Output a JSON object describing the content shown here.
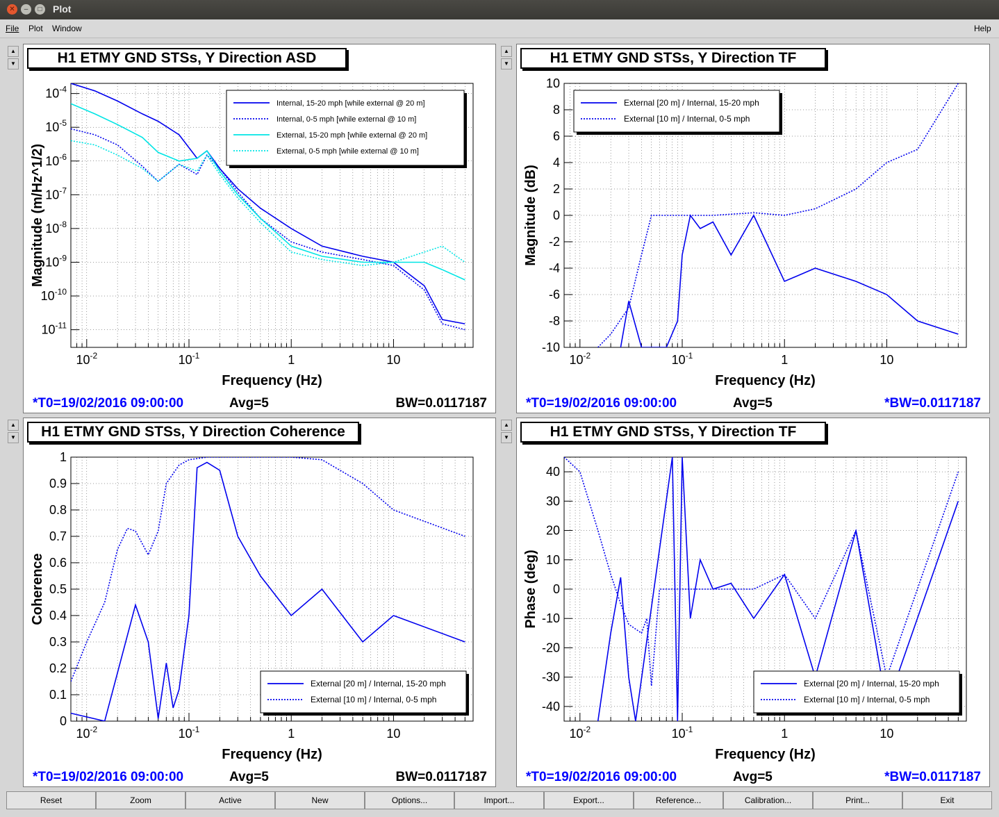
{
  "window": {
    "title": "Plot",
    "close_icon": "close-icon",
    "minimize_icon": "minimize-icon",
    "maximize_icon": "maximize-icon"
  },
  "menu": {
    "file": "File",
    "plot": "Plot",
    "window": "Window",
    "help": "Help"
  },
  "colors": {
    "blue": "#0000ee",
    "cyan": "#00e5e5",
    "stat_blue": "#0000ff"
  },
  "panels": [
    {
      "title": "H1 ETMY GND STSs, Y Direction ASD",
      "t0": "*T0=19/02/2016 09:00:00",
      "avg": "Avg=5",
      "bw": "BW=0.0117187",
      "ylabel": "Magnitude (m/Hz^1/2)",
      "xlabel": "Frequency (Hz)",
      "xticks": [
        "10^-2",
        "10^-1",
        "1",
        "10"
      ],
      "yticks": [
        "10^-4",
        "10^-5",
        "10^-6",
        "10^-7",
        "10^-8",
        "10^-9",
        "10^-10",
        "10^-11"
      ],
      "legend": [
        "Internal, 15-20 mph [while external @ 20 m]",
        "Internal, 0-5 mph [while external @ 10 m]",
        "External, 15-20 mph [while external @ 20 m]",
        "External, 0-5 mph [while external @ 10 m]"
      ]
    },
    {
      "title": "H1 ETMY GND STSs, Y Direction TF",
      "t0": "*T0=19/02/2016 09:00:00",
      "avg": "Avg=5",
      "bw": "*BW=0.0117187",
      "ylabel": "Magnitude (dB)",
      "xlabel": "Frequency (Hz)",
      "xticks": [
        "10^-2",
        "10^-1",
        "1",
        "10"
      ],
      "yticks": [
        "10",
        "8",
        "6",
        "4",
        "2",
        "0",
        "-2",
        "-4",
        "-6",
        "-8",
        "-10"
      ],
      "legend": [
        "External [20 m] / Internal, 15-20 mph",
        "External [10 m] / Internal, 0-5 mph"
      ]
    },
    {
      "title": "H1 ETMY GND STSs, Y Direction Coherence",
      "t0": "*T0=19/02/2016 09:00:00",
      "avg": "Avg=5",
      "bw": "BW=0.0117187",
      "ylabel": "Coherence",
      "xlabel": "Frequency (Hz)",
      "xticks": [
        "10^-2",
        "10^-1",
        "1",
        "10"
      ],
      "yticks": [
        "1",
        "0.9",
        "0.8",
        "0.7",
        "0.6",
        "0.5",
        "0.4",
        "0.3",
        "0.2",
        "0.1",
        "0"
      ],
      "legend": [
        "External [20 m] / Internal, 15-20 mph",
        "External [10 m] / Internal, 0-5 mph"
      ]
    },
    {
      "title": "H1 ETMY GND STSs, Y Direction TF",
      "t0": "*T0=19/02/2016 09:00:00",
      "avg": "Avg=5",
      "bw": "*BW=0.0117187",
      "ylabel": "Phase (deg)",
      "xlabel": "Frequency (Hz)",
      "xticks": [
        "10^-2",
        "10^-1",
        "1",
        "10"
      ],
      "yticks": [
        "40",
        "30",
        "20",
        "10",
        "0",
        "-10",
        "-20",
        "-30",
        "-40"
      ],
      "legend": [
        "External [20 m] / Internal, 15-20 mph",
        "External [10 m] / Internal, 0-5 mph"
      ]
    }
  ],
  "chart_data": [
    {
      "type": "line",
      "title": "H1 ETMY GND STSs, Y Direction ASD",
      "xlabel": "Frequency (Hz)",
      "ylabel": "Magnitude (m/Hz^1/2)",
      "xscale": "log",
      "yscale": "log",
      "xlim": [
        0.007,
        60
      ],
      "ylim": [
        3e-12,
        0.0002
      ],
      "grid": true,
      "legend_position": "top-right",
      "series": [
        {
          "name": "Internal, 15-20 mph [while external @ 20 m]",
          "style": "solid",
          "color": "#0000ee",
          "x": [
            0.007,
            0.012,
            0.02,
            0.035,
            0.05,
            0.08,
            0.12,
            0.15,
            0.2,
            0.3,
            0.5,
            1,
            2,
            5,
            10,
            20,
            30,
            50
          ],
          "y": [
            0.0002,
            0.00012,
            6e-05,
            2.5e-05,
            1.5e-05,
            6e-06,
            1.2e-06,
            2e-06,
            6e-07,
            1.5e-07,
            4e-08,
            1e-08,
            3e-09,
            1.5e-09,
            1e-09,
            2e-10,
            2e-11,
            1.5e-11
          ]
        },
        {
          "name": "Internal, 0-5 mph [while external @ 10 m]",
          "style": "dotted",
          "color": "#0000ee",
          "x": [
            0.007,
            0.012,
            0.02,
            0.035,
            0.05,
            0.08,
            0.12,
            0.15,
            0.2,
            0.3,
            0.5,
            1,
            2,
            5,
            10,
            20,
            30,
            50
          ],
          "y": [
            9e-06,
            6e-06,
            3e-06,
            7e-07,
            2.5e-07,
            8e-07,
            4e-07,
            1.5e-06,
            6e-07,
            1.2e-07,
            2e-08,
            4e-09,
            2e-09,
            1.2e-09,
            8e-10,
            1.5e-10,
            1.5e-11,
            1e-11
          ]
        },
        {
          "name": "External, 15-20 mph [while external @ 20 m]",
          "style": "solid",
          "color": "#00e5e5",
          "x": [
            0.007,
            0.012,
            0.02,
            0.035,
            0.05,
            0.08,
            0.12,
            0.15,
            0.2,
            0.3,
            0.5,
            1,
            2,
            5,
            10,
            20,
            30,
            50
          ],
          "y": [
            5e-05,
            2.5e-05,
            1.2e-05,
            5e-06,
            1.8e-06,
            1e-06,
            1.2e-06,
            2e-06,
            5e-07,
            1e-07,
            2e-08,
            3e-09,
            1.5e-09,
            1e-09,
            1e-09,
            1e-09,
            6e-10,
            3e-10
          ]
        },
        {
          "name": "External, 0-5 mph [while external @ 10 m]",
          "style": "dotted",
          "color": "#00e5e5",
          "x": [
            0.007,
            0.012,
            0.02,
            0.035,
            0.05,
            0.08,
            0.12,
            0.15,
            0.2,
            0.3,
            0.5,
            1,
            2,
            5,
            10,
            20,
            30,
            50
          ],
          "y": [
            4e-06,
            3e-06,
            1.5e-06,
            6e-07,
            2.5e-07,
            8e-07,
            5e-07,
            1.5e-06,
            4e-07,
            8e-08,
            1.5e-08,
            2e-09,
            1.2e-09,
            8e-10,
            1e-09,
            2e-09,
            3e-09,
            1e-09
          ]
        }
      ]
    },
    {
      "type": "line",
      "title": "H1 ETMY GND STSs, Y Direction TF",
      "xlabel": "Frequency (Hz)",
      "ylabel": "Magnitude (dB)",
      "xscale": "log",
      "xlim": [
        0.007,
        60
      ],
      "ylim": [
        -10,
        10
      ],
      "grid": true,
      "legend_position": "top-left",
      "series": [
        {
          "name": "External [20 m] / Internal, 15-20 mph",
          "style": "solid",
          "color": "#0000ee",
          "x": [
            0.025,
            0.03,
            0.04,
            0.07,
            0.09,
            0.1,
            0.12,
            0.15,
            0.2,
            0.3,
            0.5,
            1,
            2,
            5,
            10,
            20,
            50
          ],
          "y": [
            -10,
            -6.5,
            -10,
            -10,
            -8,
            -3,
            0,
            -1,
            -0.5,
            -3,
            0,
            -5,
            -4,
            -5,
            -6,
            -8,
            -9
          ]
        },
        {
          "name": "External [10 m] / Internal, 0-5 mph",
          "style": "dotted",
          "color": "#0000ee",
          "x": [
            0.015,
            0.02,
            0.03,
            0.04,
            0.05,
            0.07,
            0.1,
            0.2,
            0.5,
            1,
            2,
            5,
            10,
            20,
            50
          ],
          "y": [
            -10,
            -9,
            -7,
            -3,
            0,
            0,
            0,
            0,
            0.2,
            0,
            0.5,
            2,
            4,
            5,
            10
          ]
        }
      ]
    },
    {
      "type": "line",
      "title": "H1 ETMY GND STSs, Y Direction Coherence",
      "xlabel": "Frequency (Hz)",
      "ylabel": "Coherence",
      "xscale": "log",
      "xlim": [
        0.007,
        60
      ],
      "ylim": [
        0,
        1
      ],
      "grid": true,
      "legend_position": "bottom-right",
      "series": [
        {
          "name": "External [20 m] / Internal, 15-20 mph",
          "style": "solid",
          "color": "#0000ee",
          "x": [
            0.007,
            0.015,
            0.03,
            0.04,
            0.05,
            0.06,
            0.07,
            0.08,
            0.09,
            0.1,
            0.12,
            0.15,
            0.2,
            0.3,
            0.5,
            1,
            2,
            5,
            10,
            50
          ],
          "y": [
            0.03,
            0.0,
            0.44,
            0.3,
            0.01,
            0.22,
            0.05,
            0.12,
            0.27,
            0.4,
            0.96,
            0.98,
            0.95,
            0.7,
            0.55,
            0.4,
            0.5,
            0.3,
            0.4,
            0.3
          ]
        },
        {
          "name": "External [10 m] / Internal, 0-5 mph",
          "style": "dotted",
          "color": "#0000ee",
          "x": [
            0.007,
            0.01,
            0.015,
            0.02,
            0.025,
            0.03,
            0.04,
            0.05,
            0.06,
            0.08,
            0.1,
            0.15,
            0.2,
            0.5,
            1,
            2,
            5,
            10,
            50
          ],
          "y": [
            0.15,
            0.3,
            0.45,
            0.65,
            0.73,
            0.72,
            0.63,
            0.72,
            0.9,
            0.97,
            0.99,
            1,
            1,
            1,
            1,
            0.99,
            0.9,
            0.8,
            0.7
          ]
        }
      ]
    },
    {
      "type": "line",
      "title": "H1 ETMY GND STSs, Y Direction TF",
      "xlabel": "Frequency (Hz)",
      "ylabel": "Phase (deg)",
      "xscale": "log",
      "xlim": [
        0.007,
        60
      ],
      "ylim": [
        -45,
        45
      ],
      "grid": true,
      "legend_position": "bottom-right",
      "series": [
        {
          "name": "External [20 m] / Internal, 15-20 mph",
          "style": "solid",
          "color": "#0000ee",
          "x": [
            0.015,
            0.02,
            0.025,
            0.03,
            0.035,
            0.08,
            0.09,
            0.1,
            0.12,
            0.15,
            0.2,
            0.3,
            0.5,
            1,
            2,
            5,
            10,
            50
          ],
          "y": [
            -45,
            -15,
            4,
            -30,
            -45,
            45,
            -45,
            45,
            -10,
            10,
            0,
            2,
            -10,
            5,
            -30,
            20,
            -40,
            30
          ]
        },
        {
          "name": "External [10 m] / Internal, 0-5 mph",
          "style": "dotted",
          "color": "#0000ee",
          "x": [
            0.007,
            0.01,
            0.015,
            0.02,
            0.025,
            0.03,
            0.04,
            0.045,
            0.05,
            0.06,
            0.07,
            0.1,
            0.2,
            0.5,
            1,
            2,
            5,
            10,
            50
          ],
          "y": [
            45,
            40,
            20,
            5,
            -5,
            -12,
            -15,
            -10,
            -33,
            0,
            0,
            0,
            0,
            0,
            5,
            -10,
            20,
            -30,
            40
          ]
        }
      ]
    }
  ],
  "buttons": [
    "Reset",
    "Zoom",
    "Active",
    "New",
    "Options...",
    "Import...",
    "Export...",
    "Reference...",
    "Calibration...",
    "Print...",
    "Exit"
  ]
}
